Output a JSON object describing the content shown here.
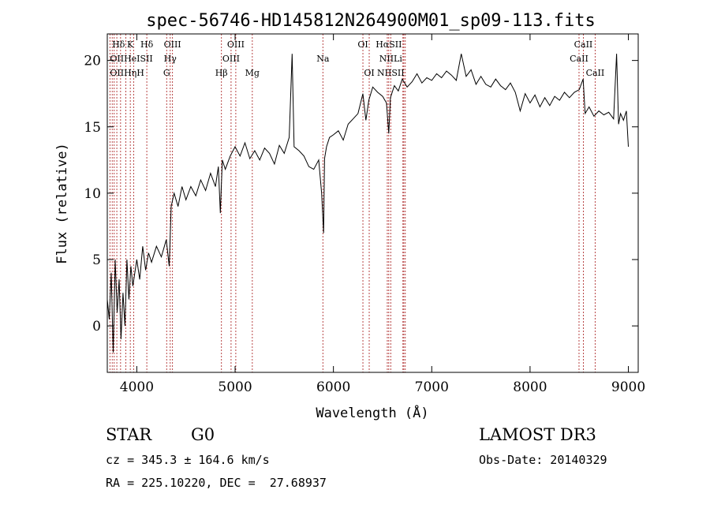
{
  "chart_data": {
    "type": "line",
    "title": "spec-56746-HD145812N264900M01_sp09-113.fits",
    "xlabel": "Wavelength (Å)",
    "ylabel": "Flux (relative)",
    "xlim": [
      3700,
      9100
    ],
    "ylim": [
      -3.5,
      22
    ],
    "xticks": [
      4000,
      5000,
      6000,
      7000,
      8000,
      9000
    ],
    "yticks": [
      0,
      5,
      10,
      15,
      20
    ],
    "series": [
      {
        "name": "flux",
        "x": [
          3700,
          3720,
          3740,
          3760,
          3780,
          3800,
          3820,
          3840,
          3860,
          3880,
          3900,
          3920,
          3940,
          3960,
          3980,
          4000,
          4030,
          4060,
          4090,
          4120,
          4150,
          4200,
          4250,
          4300,
          4330,
          4350,
          4380,
          4420,
          4460,
          4500,
          4550,
          4600,
          4650,
          4700,
          4750,
          4800,
          4830,
          4850,
          4870,
          4900,
          4950,
          5000,
          5050,
          5100,
          5150,
          5200,
          5250,
          5300,
          5350,
          5400,
          5450,
          5500,
          5550,
          5580,
          5600,
          5650,
          5700,
          5750,
          5800,
          5850,
          5880,
          5900,
          5910,
          5930,
          5960,
          6000,
          6050,
          6100,
          6150,
          6200,
          6250,
          6300,
          6330,
          6360,
          6400,
          6450,
          6500,
          6540,
          6563,
          6580,
          6620,
          6660,
          6700,
          6750,
          6800,
          6850,
          6900,
          6950,
          7000,
          7050,
          7100,
          7150,
          7200,
          7250,
          7300,
          7350,
          7400,
          7450,
          7500,
          7550,
          7600,
          7650,
          7700,
          7750,
          7800,
          7850,
          7900,
          7950,
          8000,
          8050,
          8100,
          8150,
          8200,
          8250,
          8300,
          8350,
          8400,
          8450,
          8500,
          8540,
          8560,
          8600,
          8650,
          8700,
          8750,
          8800,
          8850,
          8880,
          8900,
          8920,
          8950,
          8980,
          9000
        ],
        "values": [
          2,
          0.5,
          4,
          -2,
          5,
          1,
          3.5,
          -1,
          2.5,
          0,
          5,
          2,
          4.5,
          3,
          4,
          5,
          3.5,
          6,
          4.2,
          5.5,
          4.8,
          6,
          5.2,
          6.5,
          4.5,
          9,
          10,
          9,
          10.5,
          9.5,
          10.5,
          9.8,
          11,
          10.2,
          11.5,
          10.5,
          12,
          8.5,
          12.5,
          11.8,
          12.8,
          13.5,
          12.8,
          13.8,
          12.6,
          13.2,
          12.5,
          13.4,
          13,
          12.2,
          13.6,
          13,
          14.2,
          20.5,
          13.5,
          13.2,
          12.8,
          12,
          11.8,
          12.5,
          10,
          7,
          12.6,
          13.5,
          14.2,
          14.4,
          14.7,
          14,
          15.2,
          15.6,
          16,
          17.5,
          15.5,
          17,
          18,
          17.6,
          17.3,
          16.8,
          14.5,
          17.2,
          18.1,
          17.7,
          18.6,
          18,
          18.4,
          19,
          18.3,
          18.7,
          18.5,
          19,
          18.7,
          19.2,
          18.9,
          18.5,
          20.5,
          18.8,
          19.3,
          18.2,
          18.8,
          18.2,
          18,
          18.6,
          18.1,
          17.8,
          18.3,
          17.6,
          16.2,
          17.5,
          16.8,
          17.4,
          16.5,
          17.2,
          16.6,
          17.3,
          17,
          17.6,
          17.2,
          17.6,
          17.8,
          18.6,
          16,
          16.5,
          15.8,
          16.2,
          15.9,
          16.1,
          15.6,
          20.5,
          15.2,
          16,
          15.5,
          16.2,
          13.5
        ]
      }
    ],
    "spectral_lines": [
      {
        "label": "Hδ",
        "wl": 3750,
        "row": 0
      },
      {
        "label": "K",
        "wl": 3934,
        "row": 0
      },
      {
        "label": "Hδ",
        "wl": 4102,
        "row": 0
      },
      {
        "label": "OIII",
        "wl": 4363,
        "row": 0
      },
      {
        "label": "OIII",
        "wl": 5007,
        "row": 0
      },
      {
        "label": "OI",
        "wl": 6300,
        "row": 0
      },
      {
        "label": "HαSII",
        "wl": 6563,
        "row": 0
      },
      {
        "label": "CaII",
        "wl": 8542,
        "row": 0
      },
      {
        "label": "OIIHeISII",
        "wl": 3727,
        "row": 1
      },
      {
        "label": "Hγ",
        "wl": 4340,
        "row": 1
      },
      {
        "label": "OIII",
        "wl": 4959,
        "row": 1
      },
      {
        "label": "Na",
        "wl": 5893,
        "row": 1
      },
      {
        "label": "NIILi",
        "wl": 6583,
        "row": 1
      },
      {
        "label": "CaII",
        "wl": 8498,
        "row": 1
      },
      {
        "label": "OIIHηH",
        "wl": 3727,
        "row": 2
      },
      {
        "label": "G",
        "wl": 4304,
        "row": 2
      },
      {
        "label": "Hβ",
        "wl": 4861,
        "row": 2
      },
      {
        "label": "Mg",
        "wl": 5175,
        "row": 2
      },
      {
        "label": "OI",
        "wl": 6364,
        "row": 2
      },
      {
        "label": "NIISII",
        "wl": 6583,
        "row": 2
      },
      {
        "label": "CaII",
        "wl": 8662,
        "row": 2
      }
    ],
    "marker_lines": [
      3727,
      3750,
      3770,
      3797,
      3835,
      3889,
      3934,
      3968,
      4102,
      4304,
      4340,
      4363,
      4861,
      4959,
      5007,
      5175,
      5893,
      6300,
      6364,
      6548,
      6563,
      6583,
      6707,
      6716,
      6731,
      8498,
      8542,
      8662
    ]
  },
  "info": {
    "object_type": "STAR",
    "subclass": "G0",
    "survey": "LAMOST DR3",
    "cz": "cz = 345.3 ± 164.6 km/s",
    "obs_date": "Obs-Date: 20140329",
    "coords": "RA = 225.10220, DEC =  27.68937"
  }
}
